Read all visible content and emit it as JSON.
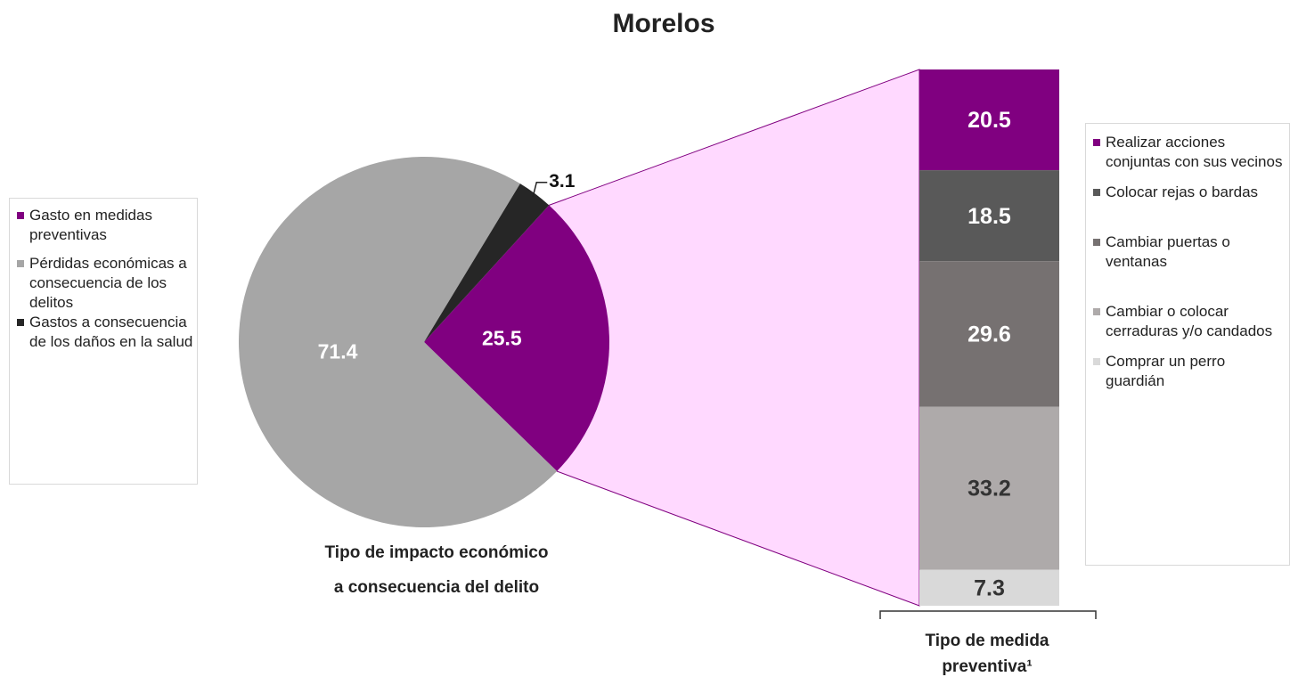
{
  "chart_data": [
    {
      "type": "pie",
      "title": "Morelos",
      "caption": [
        "Tipo de impacto económico",
        "a consecuencia del delito"
      ],
      "categories": [
        "Gasto en medidas preventivas",
        "Pérdidas económicas a consecuencia de los delitos",
        "Gastos a consecuencia de los daños en la salud"
      ],
      "values": [
        25.5,
        71.4,
        3.1
      ],
      "colors": [
        "#800080",
        "#a6a6a6",
        "#262626"
      ]
    },
    {
      "type": "stacked-bar",
      "caption": [
        "Tipo de medida",
        "preventiva¹"
      ],
      "categories": [
        "Realizar acciones conjuntas con sus vecinos",
        "Colocar rejas o bardas",
        "Cambiar puertas o ventanas",
        "Cambiar o colocar cerraduras y/o candados",
        "Comprar un perro guardián"
      ],
      "values": [
        20.5,
        18.5,
        29.6,
        33.2,
        7.3
      ],
      "colors": [
        "#800080",
        "#595959",
        "#767171",
        "#aeaaaa",
        "#d9d9d9"
      ]
    }
  ]
}
